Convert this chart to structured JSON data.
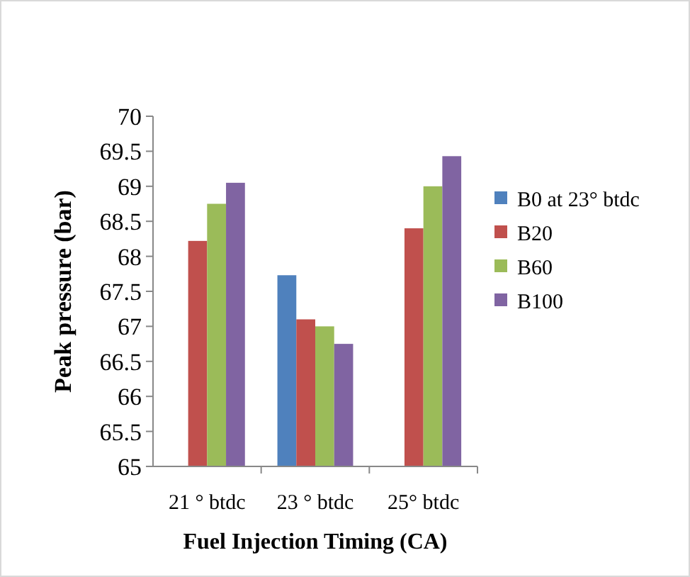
{
  "chart_data": {
    "type": "bar",
    "xlabel": "Fuel Injection Timing (CA)",
    "ylabel": "Peak pressure (bar)",
    "categories": [
      "21 ° btdc",
      "23 ° btdc",
      "25° btdc"
    ],
    "series": [
      {
        "name": "B0 at 23°  btdc",
        "color": "#4f81bd",
        "values": [
          null,
          67.73,
          null
        ]
      },
      {
        "name": "B20",
        "color": "#c0504d",
        "values": [
          68.22,
          67.1,
          68.4
        ]
      },
      {
        "name": "B60",
        "color": "#9bbb59",
        "values": [
          68.75,
          67.0,
          69.0
        ]
      },
      {
        "name": "B100",
        "color": "#8064a2",
        "values": [
          69.05,
          66.75,
          69.43
        ]
      }
    ],
    "ylim": [
      65,
      70
    ],
    "yticks": [
      65,
      65.5,
      66,
      66.5,
      67,
      67.5,
      68,
      68.5,
      69,
      69.5,
      70
    ],
    "grid": false,
    "legend": "right"
  }
}
